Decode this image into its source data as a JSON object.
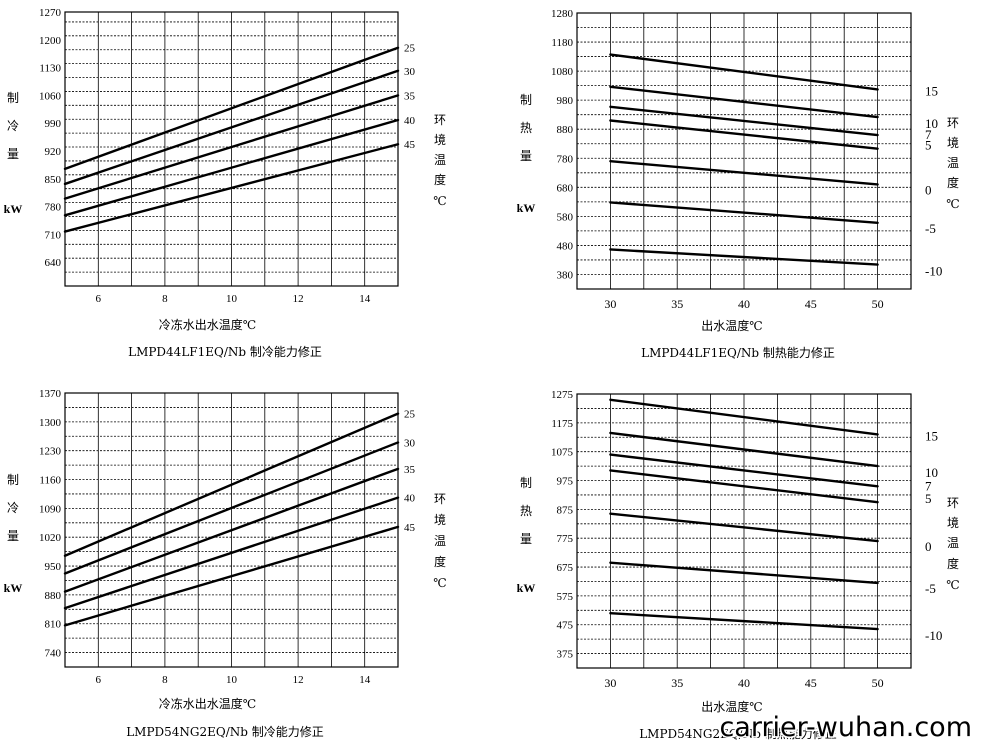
{
  "watermark": "carrier-wuhan.com",
  "chart_data": [
    {
      "type": "line",
      "caption": "LMPD44LF1EQ/Nb 制冷能力修正",
      "xlabel": "冷冻水出水温度℃",
      "ylabel_chars": [
        "制",
        "冷",
        "量"
      ],
      "yunit": "kW",
      "legend_title_chars": [
        "环",
        "境",
        "温",
        "度",
        "℃"
      ],
      "xlim": [
        5,
        15
      ],
      "ylim": [
        580,
        1270
      ],
      "xticks": [
        6,
        8,
        10,
        12,
        14
      ],
      "yticks": [
        640,
        710,
        780,
        850,
        920,
        990,
        1060,
        1130,
        1200,
        1270
      ],
      "grid": true,
      "series": [
        {
          "name": "25",
          "x": [
            5,
            15
          ],
          "y": [
            875,
            1180
          ]
        },
        {
          "name": "30",
          "x": [
            5,
            15
          ],
          "y": [
            837,
            1122
          ]
        },
        {
          "name": "35",
          "x": [
            5,
            15
          ],
          "y": [
            800,
            1060
          ]
        },
        {
          "name": "40",
          "x": [
            5,
            15
          ],
          "y": [
            758,
            998
          ]
        },
        {
          "name": "45",
          "x": [
            5,
            15
          ],
          "y": [
            717,
            937
          ]
        }
      ]
    },
    {
      "type": "line",
      "caption": "LMPD44LF1EQ/Nb 制热能力修正",
      "xlabel": "出水温度℃",
      "ylabel_chars": [
        "制",
        "热",
        "量"
      ],
      "yunit": "kW",
      "legend_title_chars": [
        "环",
        "境",
        "温",
        "度",
        "℃"
      ],
      "xlim": [
        27.5,
        52.5
      ],
      "ylim": [
        330,
        1280
      ],
      "xticks": [
        30,
        35,
        40,
        45,
        50
      ],
      "yticks": [
        380,
        480,
        580,
        680,
        780,
        880,
        980,
        1080,
        1180,
        1280
      ],
      "grid": true,
      "series": [
        {
          "name": "15",
          "x": [
            30,
            50
          ],
          "y": [
            1137,
            1017
          ]
        },
        {
          "name": "10",
          "x": [
            30,
            50
          ],
          "y": [
            1026,
            922
          ]
        },
        {
          "name": "7",
          "x": [
            30,
            50
          ],
          "y": [
            957,
            860
          ]
        },
        {
          "name": "5",
          "x": [
            30,
            50
          ],
          "y": [
            910,
            813
          ]
        },
        {
          "name": "0",
          "x": [
            30,
            50
          ],
          "y": [
            770,
            690
          ]
        },
        {
          "name": "-5",
          "x": [
            30,
            50
          ],
          "y": [
            628,
            558
          ]
        },
        {
          "name": "-10",
          "x": [
            30,
            50
          ],
          "y": [
            466,
            414
          ]
        }
      ]
    },
    {
      "type": "line",
      "caption": "LMPD54NG2EQ/Nb 制冷能力修正",
      "xlabel": "冷冻水出水温度℃",
      "ylabel_chars": [
        "制",
        "冷",
        "量"
      ],
      "yunit": "kW",
      "legend_title_chars": [
        "环",
        "境",
        "温",
        "度",
        "℃"
      ],
      "xlim": [
        5,
        15
      ],
      "ylim": [
        705,
        1370
      ],
      "xticks": [
        6,
        8,
        10,
        12,
        14
      ],
      "yticks": [
        740,
        810,
        880,
        950,
        1020,
        1090,
        1160,
        1230,
        1300,
        1370
      ],
      "grid": true,
      "series": [
        {
          "name": "25",
          "x": [
            5,
            15
          ],
          "y": [
            975,
            1320
          ]
        },
        {
          "name": "30",
          "x": [
            5,
            15
          ],
          "y": [
            932,
            1250
          ]
        },
        {
          "name": "35",
          "x": [
            5,
            15
          ],
          "y": [
            888,
            1186
          ]
        },
        {
          "name": "40",
          "x": [
            5,
            15
          ],
          "y": [
            848,
            1116
          ]
        },
        {
          "name": "45",
          "x": [
            5,
            15
          ],
          "y": [
            806,
            1045
          ]
        }
      ]
    },
    {
      "type": "line",
      "caption": "LMPD54NG2EQ/Nb 制热能力修正",
      "xlabel": "出水温度℃",
      "ylabel_chars": [
        "制",
        "热",
        "量"
      ],
      "yunit": "kW",
      "legend_title_chars": [
        "环",
        "境",
        "温",
        "度",
        "℃"
      ],
      "xlim": [
        27.5,
        52.5
      ],
      "ylim": [
        325,
        1275
      ],
      "xticks": [
        30,
        35,
        40,
        45,
        50
      ],
      "yticks": [
        375,
        475,
        575,
        675,
        775,
        875,
        975,
        1075,
        1175,
        1275
      ],
      "grid": true,
      "series": [
        {
          "name": "15",
          "x": [
            30,
            50
          ],
          "y": [
            1255,
            1135
          ]
        },
        {
          "name": "10",
          "x": [
            30,
            50
          ],
          "y": [
            1140,
            1025
          ]
        },
        {
          "name": "7",
          "x": [
            30,
            50
          ],
          "y": [
            1065,
            955
          ]
        },
        {
          "name": "5",
          "x": [
            30,
            50
          ],
          "y": [
            1010,
            900
          ]
        },
        {
          "name": "0",
          "x": [
            30,
            50
          ],
          "y": [
            860,
            765
          ]
        },
        {
          "name": "-5",
          "x": [
            30,
            50
          ],
          "y": [
            690,
            620
          ]
        },
        {
          "name": "-10",
          "x": [
            30,
            50
          ],
          "y": [
            515,
            460
          ]
        }
      ]
    }
  ]
}
